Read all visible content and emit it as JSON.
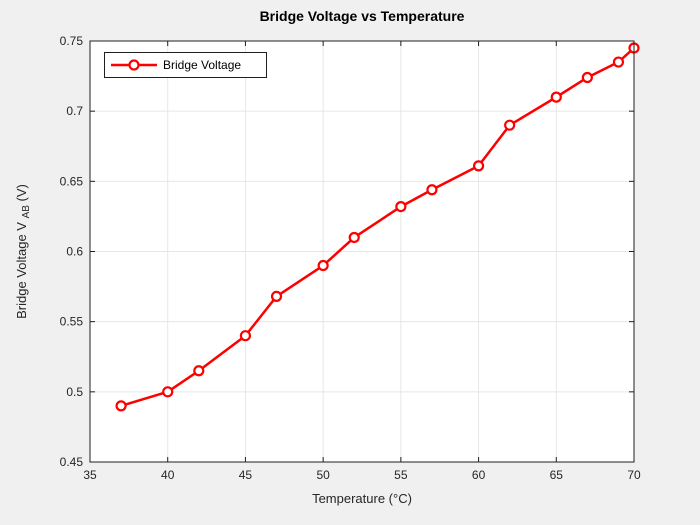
{
  "window": {
    "type": "matlab-figure",
    "background_color": "#f0f0f0"
  },
  "chart_data": {
    "type": "line",
    "title": "Bridge Voltage vs Temperature",
    "xlabel": "Temperature (°C)",
    "ylabel": "Bridge Voltage V_AB (V)",
    "ylabel_parts": {
      "prefix": "Bridge Voltage V",
      "subscript": "AB",
      "suffix": " (V)"
    },
    "xlim": [
      35,
      70
    ],
    "ylim": [
      0.45,
      0.75
    ],
    "xticks": [
      35,
      40,
      45,
      50,
      55,
      60,
      65,
      70
    ],
    "xtick_labels": [
      "35",
      "40",
      "45",
      "50",
      "55",
      "60",
      "65",
      "70"
    ],
    "yticks": [
      0.45,
      0.5,
      0.55,
      0.6,
      0.65,
      0.7,
      0.75
    ],
    "ytick_labels": [
      "0.45",
      "0.5",
      "0.55",
      "0.6",
      "0.65",
      "0.7",
      "0.75"
    ],
    "grid": true,
    "legend": {
      "position": "northwest",
      "label": "Bridge Voltage"
    },
    "series": [
      {
        "name": "Bridge Voltage",
        "color": "#ff0000",
        "marker": "circle",
        "x": [
          37,
          40,
          42,
          45,
          47,
          50,
          52,
          55,
          57,
          60,
          62,
          65,
          67,
          69,
          70
        ],
        "y": [
          0.49,
          0.5,
          0.515,
          0.54,
          0.568,
          0.59,
          0.61,
          0.632,
          0.644,
          0.661,
          0.69,
          0.71,
          0.724,
          0.735,
          0.745
        ]
      }
    ],
    "colors": {
      "figure_bg": "#f0f0f0",
      "plot_bg": "#ffffff",
      "grid": "#e6e6e6",
      "axis": "#1f1f1f",
      "series": "#ff0000"
    }
  }
}
